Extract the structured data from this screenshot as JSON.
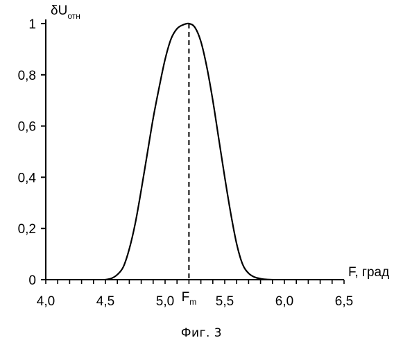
{
  "chart_data": {
    "type": "line",
    "title": "",
    "xlabel": "F, град",
    "ylabel": "δU",
    "ylabel_sub": "отн",
    "xlim": [
      4.0,
      6.5
    ],
    "ylim": [
      0,
      1
    ],
    "x_ticks": [
      4.0,
      4.5,
      5.0,
      5.5,
      6.0,
      6.5
    ],
    "x_tick_labels": [
      "4,0",
      "4,5",
      "5,0",
      "5,5",
      "6,0",
      "6,5"
    ],
    "x_minor_step": 0.1,
    "y_ticks": [
      0,
      0.2,
      0.4,
      0.6,
      0.8,
      1
    ],
    "y_tick_labels": [
      "0",
      "0,2",
      "0,4",
      "0,6",
      "0,8",
      "1"
    ],
    "grid": false,
    "marker": {
      "label": "F",
      "label_sub": "m",
      "x": 5.2,
      "style": "dashed"
    },
    "series": [
      {
        "x": [
          4.5,
          4.55,
          4.6,
          4.65,
          4.7,
          4.75,
          4.8,
          4.85,
          4.9,
          4.95,
          5.0,
          5.05,
          5.1,
          5.15,
          5.2,
          5.25,
          5.3,
          5.35,
          5.4,
          5.45,
          5.5,
          5.55,
          5.6,
          5.65,
          5.7,
          5.75,
          5.8,
          5.85,
          5.9
        ],
        "y": [
          0.0,
          0.005,
          0.02,
          0.05,
          0.12,
          0.22,
          0.35,
          0.49,
          0.63,
          0.75,
          0.86,
          0.94,
          0.98,
          0.995,
          1.0,
          0.985,
          0.93,
          0.83,
          0.7,
          0.55,
          0.4,
          0.26,
          0.14,
          0.06,
          0.025,
          0.01,
          0.004,
          0.001,
          0.0
        ]
      }
    ]
  },
  "caption": "Фиг. 3"
}
